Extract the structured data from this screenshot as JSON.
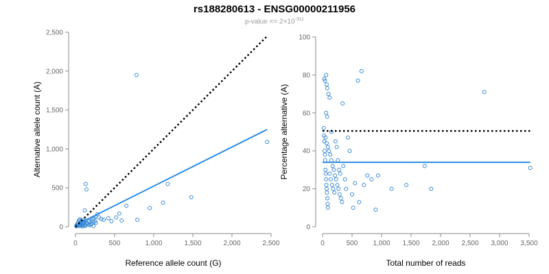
{
  "header": {
    "title": "rs188280613 - ENSG00000211956",
    "subtitle_prefix": "p-value <= 2×10",
    "subtitle_exp": "-311"
  },
  "colors": {
    "points": "#3a8ad4",
    "fit": "#2b8ae6",
    "reference": "#000000",
    "axis": "#888888"
  },
  "chart_data": [
    {
      "type": "scatter",
      "xlabel": "Reference allele count (G)",
      "ylabel": "Alternative allele count (A)",
      "xlim": [
        0,
        2500
      ],
      "ylim": [
        0,
        2500
      ],
      "xticks": [
        0,
        500,
        1000,
        1500,
        2000,
        2500
      ],
      "yticks": [
        0,
        500,
        1000,
        1500,
        2000,
        2500
      ],
      "xtick_labels": [
        "0",
        "500",
        "1,000",
        "1,500",
        "2,000",
        "2,500"
      ],
      "ytick_labels": [
        "0",
        "500",
        "1,000",
        "1,500",
        "2,000",
        "2,500"
      ],
      "points": [
        [
          10,
          5
        ],
        [
          15,
          20
        ],
        [
          20,
          10
        ],
        [
          25,
          40
        ],
        [
          30,
          15
        ],
        [
          35,
          60
        ],
        [
          40,
          25
        ],
        [
          45,
          80
        ],
        [
          50,
          30
        ],
        [
          55,
          10
        ],
        [
          60,
          50
        ],
        [
          65,
          20
        ],
        [
          70,
          70
        ],
        [
          75,
          35
        ],
        [
          80,
          15
        ],
        [
          85,
          90
        ],
        [
          90,
          45
        ],
        [
          95,
          25
        ],
        [
          100,
          55
        ],
        [
          105,
          40
        ],
        [
          110,
          60
        ],
        [
          115,
          20
        ],
        [
          120,
          30
        ],
        [
          125,
          10
        ],
        [
          130,
          80
        ],
        [
          140,
          50
        ],
        [
          150,
          40
        ],
        [
          160,
          30
        ],
        [
          170,
          70
        ],
        [
          180,
          20
        ],
        [
          190,
          60
        ],
        [
          200,
          40
        ],
        [
          210,
          80
        ],
        [
          220,
          100
        ],
        [
          230,
          60
        ],
        [
          240,
          110
        ],
        [
          250,
          70
        ],
        [
          260,
          130
        ],
        [
          280,
          160
        ],
        [
          300,
          120
        ],
        [
          330,
          100
        ],
        [
          360,
          90
        ],
        [
          420,
          110
        ],
        [
          460,
          70
        ],
        [
          520,
          120
        ],
        [
          560,
          170
        ],
        [
          590,
          80
        ],
        [
          650,
          270
        ],
        [
          780,
          1950
        ],
        [
          790,
          90
        ],
        [
          950,
          240
        ],
        [
          1120,
          310
        ],
        [
          1180,
          550
        ],
        [
          1480,
          380
        ],
        [
          2450,
          1090
        ],
        [
          130,
          550
        ],
        [
          140,
          480
        ],
        [
          120,
          210
        ],
        [
          70,
          40
        ],
        [
          55,
          95
        ],
        [
          200,
          30
        ],
        [
          230,
          10
        ],
        [
          260,
          50
        ],
        [
          90,
          5
        ]
      ],
      "fit_line": [
        [
          0,
          20
        ],
        [
          2450,
          1250
        ]
      ],
      "reference_line": [
        [
          0,
          0
        ],
        [
          2450,
          2450
        ]
      ]
    },
    {
      "type": "scatter",
      "xlabel": "Total number of reads",
      "ylabel": "Percentage alternative (A)",
      "xlim": [
        0,
        3500
      ],
      "ylim": [
        0,
        100
      ],
      "xticks": [
        0,
        500,
        1000,
        1500,
        2000,
        2500,
        3000,
        3500
      ],
      "yticks": [
        0,
        20,
        40,
        60,
        80,
        100
      ],
      "xtick_labels": [
        "0",
        "500",
        "1,000",
        "1,500",
        "2,000",
        "2,500",
        "3,000",
        "3,500"
      ],
      "ytick_labels": [
        "0",
        "20",
        "40",
        "60",
        "80",
        "100"
      ],
      "points": [
        [
          20,
          52
        ],
        [
          25,
          48
        ],
        [
          30,
          45
        ],
        [
          35,
          40
        ],
        [
          40,
          38
        ],
        [
          45,
          35
        ],
        [
          50,
          30
        ],
        [
          55,
          28
        ],
        [
          60,
          25
        ],
        [
          65,
          22
        ],
        [
          70,
          20
        ],
        [
          75,
          18
        ],
        [
          80,
          15
        ],
        [
          85,
          12
        ],
        [
          90,
          10
        ],
        [
          30,
          78
        ],
        [
          40,
          77
        ],
        [
          60,
          80
        ],
        [
          70,
          75
        ],
        [
          80,
          73
        ],
        [
          100,
          70
        ],
        [
          120,
          68
        ],
        [
          150,
          50
        ],
        [
          60,
          60
        ],
        [
          80,
          58
        ],
        [
          50,
          47
        ],
        [
          70,
          44
        ],
        [
          90,
          42
        ],
        [
          110,
          40
        ],
        [
          130,
          38
        ],
        [
          150,
          35
        ],
        [
          170,
          32
        ],
        [
          190,
          30
        ],
        [
          210,
          27
        ],
        [
          230,
          25
        ],
        [
          250,
          22
        ],
        [
          270,
          20
        ],
        [
          290,
          17
        ],
        [
          310,
          15
        ],
        [
          330,
          13
        ],
        [
          120,
          28
        ],
        [
          140,
          25
        ],
        [
          160,
          22
        ],
        [
          180,
          20
        ],
        [
          200,
          18
        ],
        [
          220,
          45
        ],
        [
          240,
          42
        ],
        [
          260,
          35
        ],
        [
          280,
          30
        ],
        [
          300,
          28
        ],
        [
          340,
          65
        ],
        [
          350,
          32
        ],
        [
          380,
          25
        ],
        [
          400,
          20
        ],
        [
          430,
          47
        ],
        [
          460,
          40
        ],
        [
          500,
          17
        ],
        [
          520,
          10
        ],
        [
          550,
          23
        ],
        [
          600,
          77
        ],
        [
          620,
          13
        ],
        [
          660,
          82
        ],
        [
          700,
          22
        ],
        [
          760,
          27
        ],
        [
          830,
          25
        ],
        [
          900,
          9
        ],
        [
          940,
          27
        ],
        [
          1170,
          20
        ],
        [
          1420,
          22
        ],
        [
          1730,
          32
        ],
        [
          1840,
          20
        ],
        [
          2740,
          71
        ],
        [
          3520,
          31
        ]
      ],
      "fit_line": [
        [
          0,
          34
        ],
        [
          3520,
          34
        ]
      ],
      "reference_line": [
        [
          0,
          50.5
        ],
        [
          3520,
          50.5
        ]
      ]
    }
  ]
}
